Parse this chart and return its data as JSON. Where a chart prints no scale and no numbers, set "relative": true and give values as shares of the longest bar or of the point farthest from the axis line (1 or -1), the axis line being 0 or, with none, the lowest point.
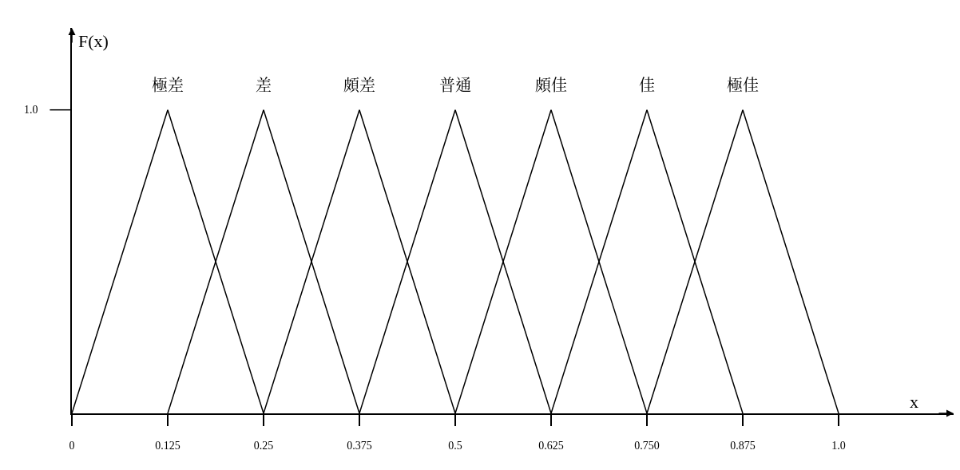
{
  "chart_data": {
    "type": "line",
    "xlabel": "x",
    "ylabel": "F(x)",
    "series": [
      {
        "name": "極差",
        "color": "#000000",
        "x": [
          0,
          0.125,
          0.25
        ],
        "values": [
          0,
          1,
          0
        ]
      },
      {
        "name": "差",
        "color": "#000000",
        "x": [
          0.125,
          0.25,
          0.375
        ],
        "values": [
          0,
          1,
          0
        ]
      },
      {
        "name": "頗差",
        "color": "#000000",
        "x": [
          0.25,
          0.375,
          0.5
        ],
        "values": [
          0,
          1,
          0
        ]
      },
      {
        "name": "普通",
        "color": "#000000",
        "x": [
          0.375,
          0.5,
          0.625
        ],
        "values": [
          0,
          1,
          0
        ]
      },
      {
        "name": "頗佳",
        "color": "#000000",
        "x": [
          0.5,
          0.625,
          0.75
        ],
        "values": [
          0,
          1,
          0
        ]
      },
      {
        "name": "佳",
        "color": "#000000",
        "x": [
          0.625,
          0.75,
          0.875
        ],
        "values": [
          0,
          1,
          0
        ]
      },
      {
        "name": "極佳",
        "color": "#000000",
        "x": [
          0.75,
          0.875,
          1.0
        ],
        "values": [
          0,
          1,
          0
        ]
      }
    ],
    "xlim": [
      0,
      1.15
    ],
    "relative": true,
    "annotations": [
      "1.0"
    ],
    "xticks": [
      0,
      0.125,
      0.25,
      0.375,
      0.5,
      0.625,
      {
        "value": 0.75,
        "label": "0.750"
      },
      0.875,
      {
        "value": 1.0,
        "label": "1.0"
      }
    ],
    "marker": "none",
    "line_style": "solid"
  }
}
